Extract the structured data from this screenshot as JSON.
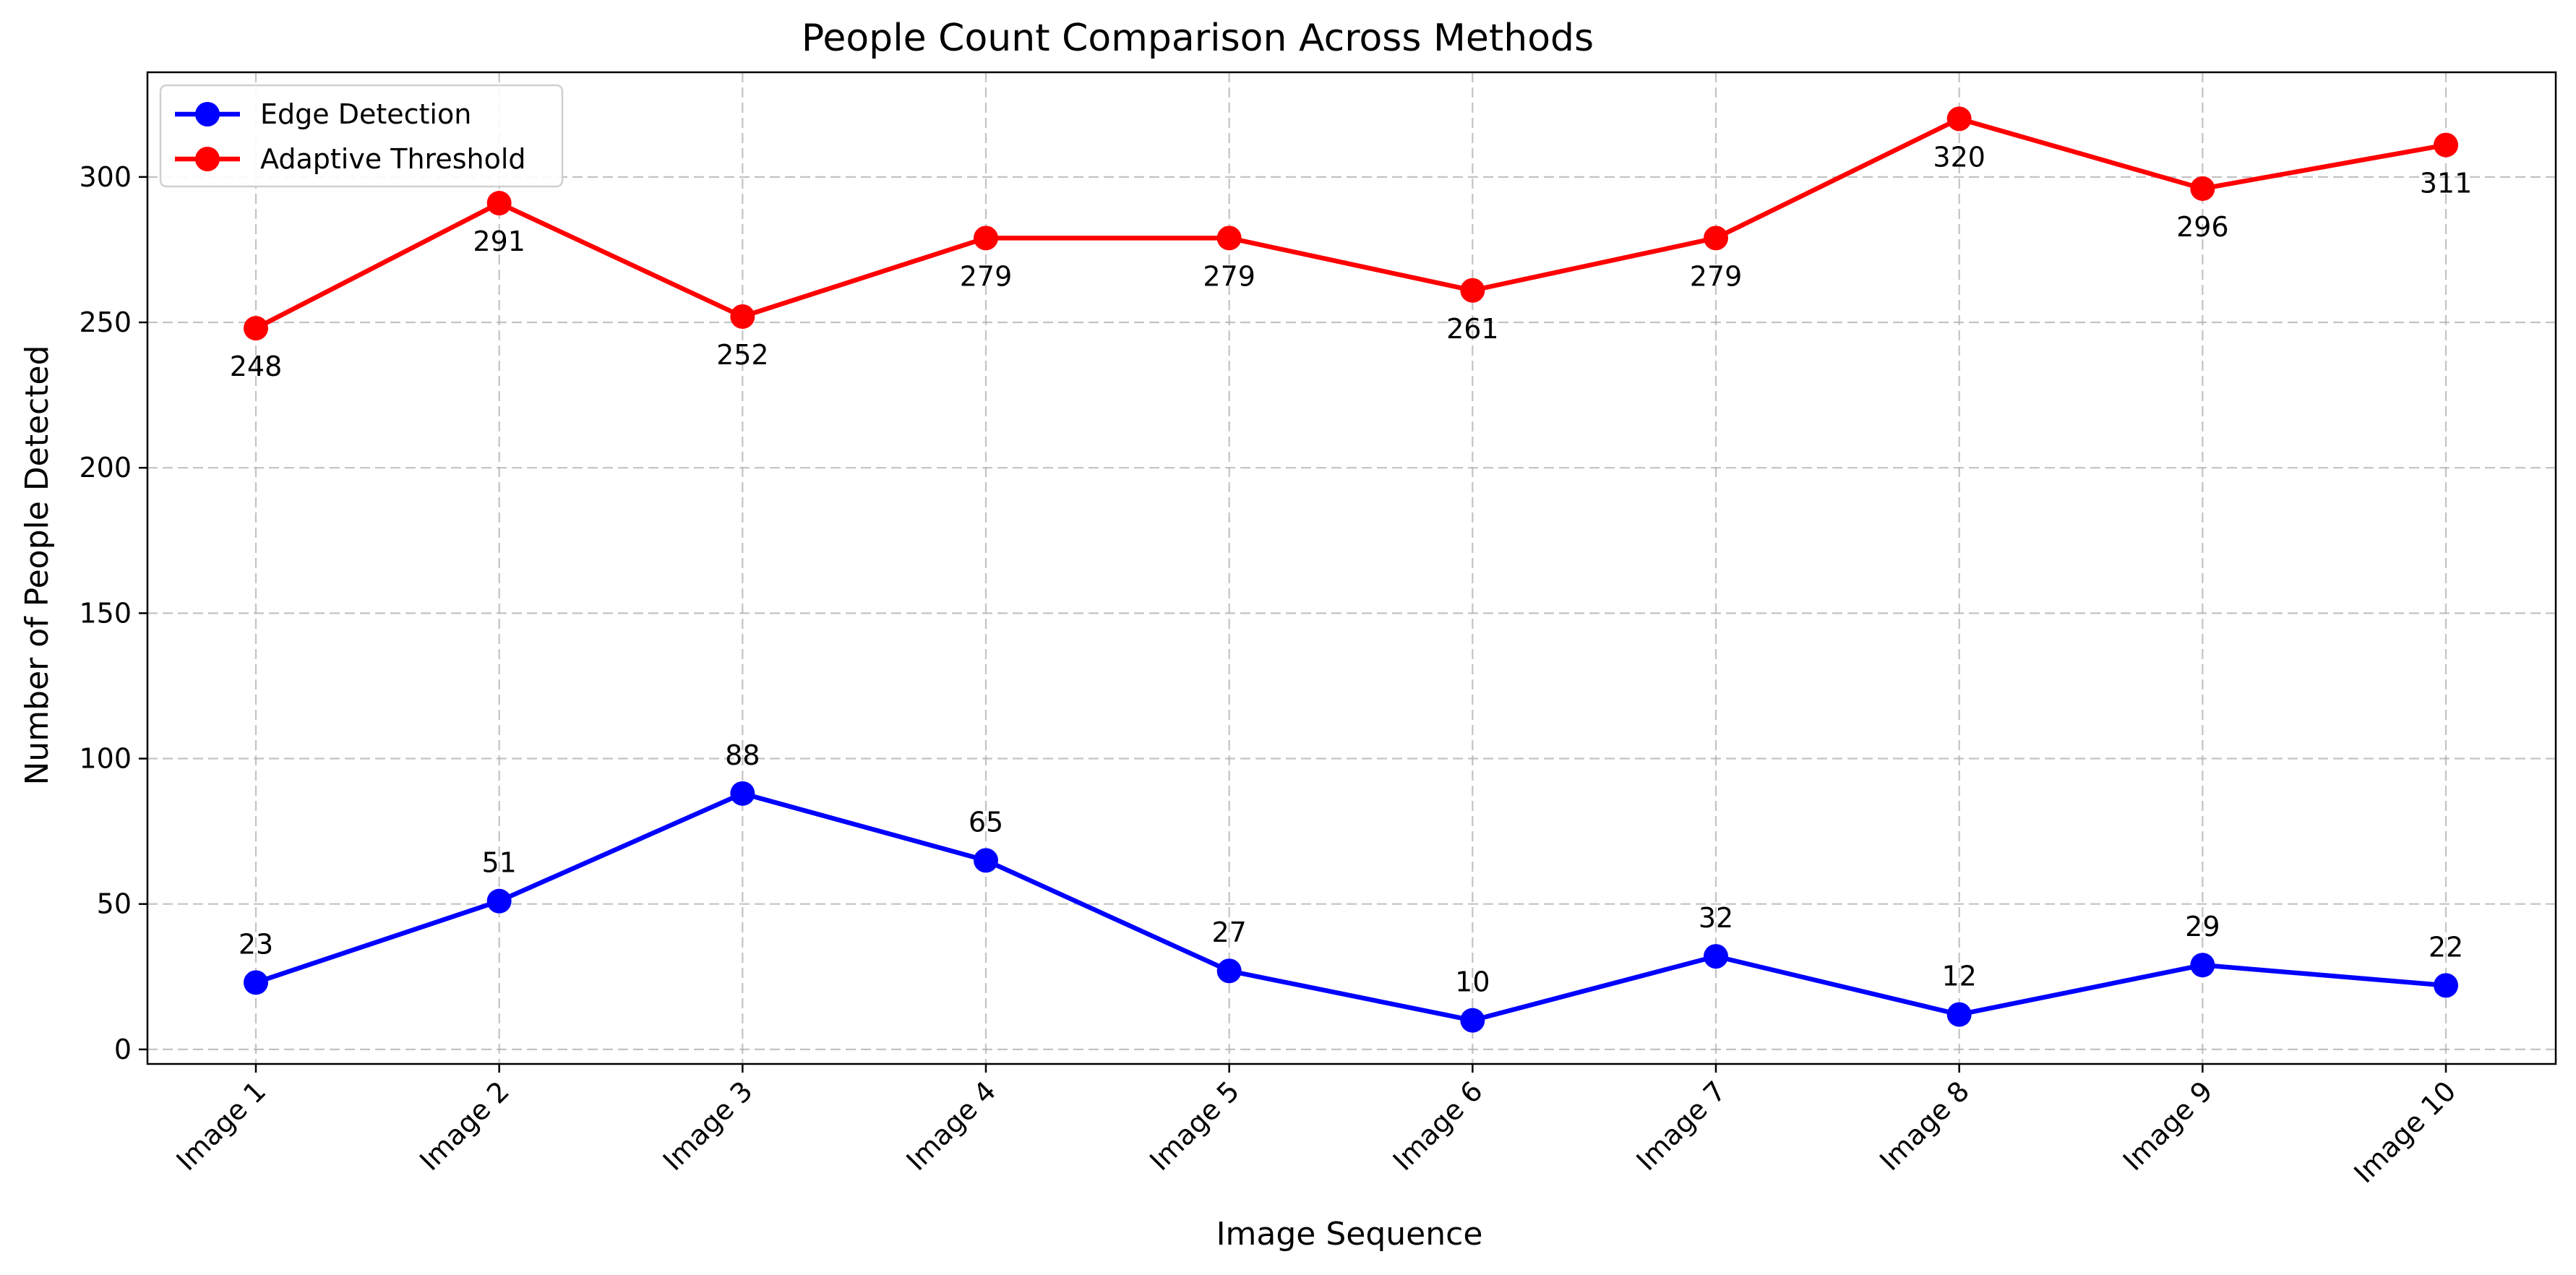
{
  "chart_data": {
    "type": "line",
    "title": "People Count Comparison Across Methods",
    "xlabel": "Image Sequence",
    "ylabel": "Number of People Detected",
    "categories": [
      "Image 1",
      "Image 2",
      "Image 3",
      "Image 4",
      "Image 5",
      "Image 6",
      "Image 7",
      "Image 8",
      "Image 9",
      "Image 10"
    ],
    "ylim": [
      -5,
      336
    ],
    "yticks": [
      0,
      50,
      100,
      150,
      200,
      250,
      300
    ],
    "grid": true,
    "legend_position": "upper-left",
    "series": [
      {
        "name": "Edge Detection",
        "color": "#0000ff",
        "marker": "circle",
        "label_position": "above",
        "values": [
          23,
          51,
          88,
          65,
          27,
          10,
          32,
          12,
          29,
          22
        ]
      },
      {
        "name": "Adaptive Threshold",
        "color": "#ff0000",
        "marker": "circle",
        "label_position": "below",
        "values": [
          248,
          291,
          252,
          279,
          279,
          261,
          279,
          320,
          296,
          311
        ]
      }
    ]
  }
}
